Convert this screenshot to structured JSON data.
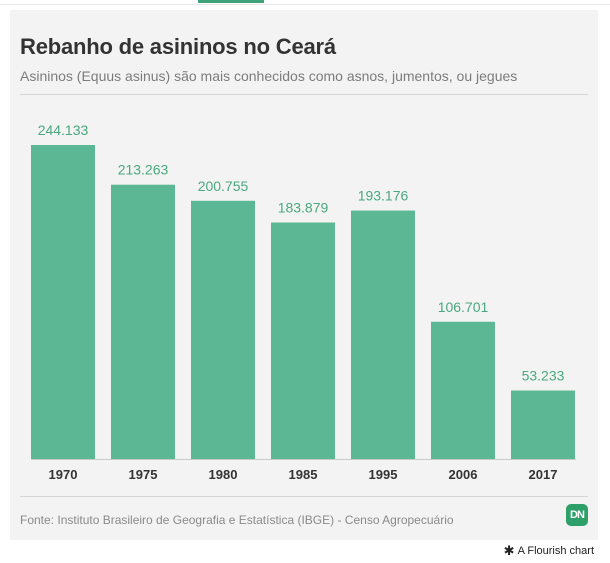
{
  "colors": {
    "bar": "#5cb794",
    "value_label": "#4aa87f",
    "accent": "#3fa27a",
    "logo_bg": "#2da069"
  },
  "header": {
    "title": "Rebanho de asininos no Ceará",
    "subtitle": "Asininos (Equus asinus) são mais conhecidos como asnos, jumentos, ou jegues"
  },
  "chart_data": {
    "type": "bar",
    "title": "Rebanho de asininos no Ceará",
    "subtitle": "Asininos (Equus asinus) são mais conhecidos como asnos, jumentos, ou jegues",
    "categories": [
      "1970",
      "1975",
      "1980",
      "1985",
      "1995",
      "2006",
      "2017"
    ],
    "values": [
      244133,
      213263,
      200755,
      183879,
      193176,
      106701,
      53233
    ],
    "value_labels": [
      "244.133",
      "213.263",
      "200.755",
      "183.879",
      "193.176",
      "106.701",
      "53.233"
    ],
    "xlabel": "",
    "ylabel": "",
    "ylim": [
      0,
      244133
    ],
    "grid": false,
    "legend": "none"
  },
  "footer": {
    "source": "Fonte: Instituto Brasileiro de Geografia e Estatística (IBGE) - Censo Agropecuário",
    "logo_text": "DN",
    "flourish_icon": "flourish-asterisk-icon",
    "flourish_label": "A Flourish chart"
  }
}
